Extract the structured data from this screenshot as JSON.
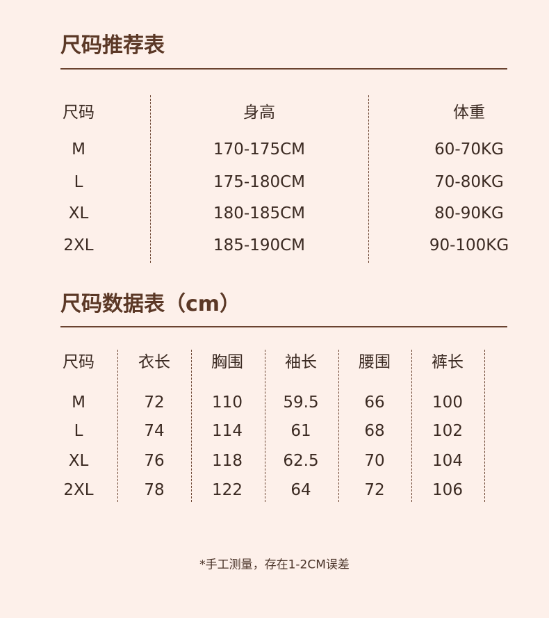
{
  "table1": {
    "title": "尺码推荐表",
    "headers": [
      "尺码",
      "身高",
      "体重"
    ],
    "rows": [
      [
        "M",
        "170-175CM",
        "60-70KG"
      ],
      [
        "L",
        "175-180CM",
        "70-80KG"
      ],
      [
        "XL",
        "180-185CM",
        "80-90KG"
      ],
      [
        "2XL",
        "185-190CM",
        "90-100KG"
      ]
    ]
  },
  "table2": {
    "title": "尺码数据表（cm）",
    "headers": [
      "尺码",
      "衣长",
      "胸围",
      "袖长",
      "腰围",
      "裤长"
    ],
    "rows": [
      [
        "M",
        "72",
        "110",
        "59.5",
        "66",
        "100"
      ],
      [
        "L",
        "74",
        "114",
        "61",
        "68",
        "102"
      ],
      [
        "XL",
        "76",
        "118",
        "62.5",
        "70",
        "104"
      ],
      [
        "2XL",
        "78",
        "122",
        "64",
        "72",
        "106"
      ]
    ]
  },
  "note": "*手工测量，存在1-2CM误差",
  "colors": {
    "background": "#fdf0ea",
    "title": "#5b3826",
    "text": "#3b2a22",
    "rule": "#6a4330"
  }
}
